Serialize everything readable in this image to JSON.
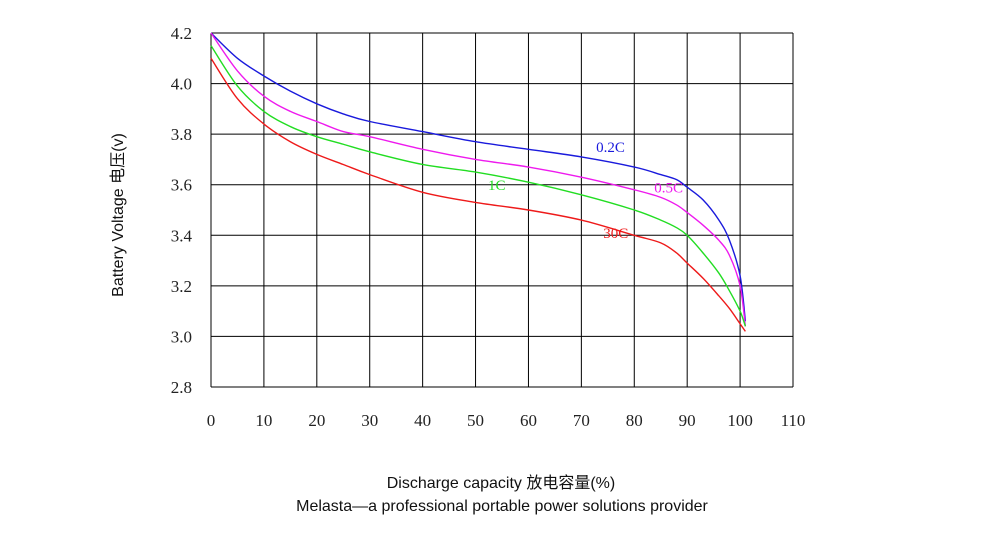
{
  "chart_data": {
    "type": "line",
    "title": "",
    "xlabel": "Discharge capacity 放电容量(%)",
    "ylabel": "Battery Voltage 电压(v)",
    "caption": "Melasta—a professional portable power solutions provider",
    "xlim": [
      0,
      110
    ],
    "ylim": [
      2.8,
      4.2
    ],
    "x_ticks": [
      0,
      10,
      20,
      30,
      40,
      50,
      60,
      70,
      80,
      90,
      100,
      110
    ],
    "x_tick_labels": [
      "0",
      "10",
      "20",
      "30",
      "40",
      "50",
      "60",
      "70",
      "80",
      "90",
      "100",
      "110"
    ],
    "y_ticks": [
      4.2,
      4.0,
      3.8,
      3.6,
      3.4,
      3.2,
      3.0,
      2.8
    ],
    "y_tick_labels": [
      "4.2",
      "4.0",
      "3.8",
      "3.6",
      "3.4",
      "3.2",
      "3.0",
      "2.8"
    ],
    "grid": true,
    "series": [
      {
        "name": "0.2C",
        "color": "#1a1adc",
        "x": [
          0,
          5,
          10,
          15,
          20,
          25,
          30,
          40,
          50,
          60,
          70,
          80,
          85,
          88,
          90,
          93,
          96,
          98,
          100,
          101
        ],
        "y": [
          4.2,
          4.1,
          4.03,
          3.97,
          3.92,
          3.88,
          3.85,
          3.81,
          3.77,
          3.74,
          3.71,
          3.67,
          3.64,
          3.62,
          3.59,
          3.54,
          3.46,
          3.38,
          3.24,
          3.06
        ]
      },
      {
        "name": "0.5C",
        "color": "#ee1aee",
        "x": [
          0,
          5,
          10,
          15,
          20,
          25,
          30,
          40,
          50,
          60,
          70,
          80,
          85,
          88,
          90,
          93,
          96,
          98,
          100,
          101
        ],
        "y": [
          4.2,
          4.05,
          3.95,
          3.89,
          3.85,
          3.81,
          3.79,
          3.74,
          3.7,
          3.67,
          3.63,
          3.58,
          3.55,
          3.52,
          3.49,
          3.44,
          3.38,
          3.32,
          3.2,
          3.04
        ]
      },
      {
        "name": "1C",
        "color": "#22dd22",
        "x": [
          0,
          5,
          10,
          15,
          20,
          25,
          30,
          40,
          50,
          60,
          70,
          80,
          85,
          88,
          90,
          93,
          96,
          98,
          100,
          101
        ],
        "y": [
          4.15,
          3.99,
          3.89,
          3.83,
          3.79,
          3.76,
          3.73,
          3.68,
          3.65,
          3.61,
          3.56,
          3.5,
          3.46,
          3.43,
          3.4,
          3.33,
          3.25,
          3.18,
          3.1,
          3.04
        ]
      },
      {
        "name": "30C",
        "color": "#ee1a1a",
        "x": [
          0,
          5,
          10,
          15,
          20,
          25,
          30,
          40,
          50,
          60,
          70,
          80,
          85,
          88,
          90,
          93,
          96,
          98,
          100,
          101
        ],
        "y": [
          4.1,
          3.94,
          3.84,
          3.77,
          3.72,
          3.68,
          3.64,
          3.57,
          3.53,
          3.5,
          3.46,
          3.4,
          3.37,
          3.33,
          3.29,
          3.23,
          3.16,
          3.11,
          3.05,
          3.02
        ]
      }
    ],
    "annotations": [
      {
        "text": "0.2C",
        "series": "0.2C",
        "x": 75.5,
        "y": 3.73
      },
      {
        "text": "0.5C",
        "series": "0.5C",
        "x": 86.5,
        "y": 3.57
      },
      {
        "text": "1C",
        "series": "1C",
        "x": 54,
        "y": 3.58
      },
      {
        "text": "30C",
        "series": "30C",
        "x": 76.5,
        "y": 3.39
      }
    ]
  }
}
